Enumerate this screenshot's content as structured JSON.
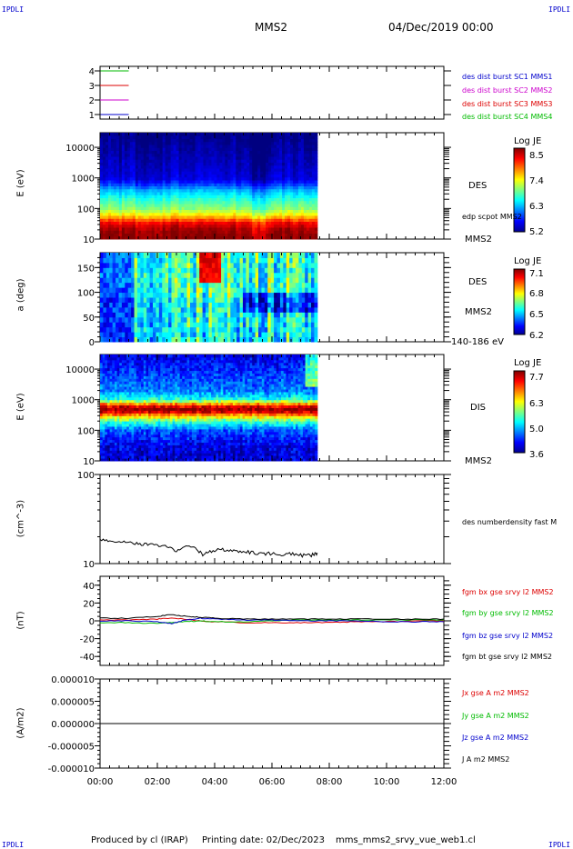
{
  "header": {
    "logo_left": "IPDLI",
    "logo_right": "IPDLI",
    "satellite": "MMS2",
    "date": "04/Dec/2019 00:00"
  },
  "footer": {
    "produced": "Produced by cl (IRAP)",
    "printing": "Printing date: 02/Dec/2023",
    "filename": "mms_mms2_srvy_vue_web1.cl",
    "logo_left": "IPDLI",
    "logo_right": "IPDLI"
  },
  "colors": {
    "red": "#dd0000",
    "green": "#00bb00",
    "blue": "#0000cc",
    "magenta": "#cc00cc",
    "black": "#000000"
  },
  "panels": {
    "p1": {
      "legend": [
        {
          "text": "des dist burst SC1 MMS1",
          "color": "#0000cc"
        },
        {
          "text": "des dist burst SC2 MMS2",
          "color": "#cc00cc"
        },
        {
          "text": "des dist burst SC3 MMS3",
          "color": "#dd0000"
        },
        {
          "text": "des dist burst SC4 MMS4",
          "color": "#00bb00"
        }
      ]
    },
    "p2": {
      "ylabel": "E (eV)",
      "label": "DES",
      "note": "edp scpot MMS2",
      "sat": "MMS2",
      "cbar_title": "Log JE",
      "cbar_ticks": [
        "8.5",
        "7.4",
        "6.3",
        "5.2"
      ]
    },
    "p3": {
      "ylabel": "a (deg)",
      "label": "DES",
      "sat": "MMS2",
      "range": "140-186 eV",
      "cbar_title": "Log JE",
      "cbar_ticks": [
        "7.1",
        "6.8",
        "6.5",
        "6.2"
      ]
    },
    "p4": {
      "ylabel": "E (eV)",
      "label": "DIS",
      "sat": "MMS2",
      "cbar_title": "Log JE",
      "cbar_ticks": [
        "7.7",
        "6.3",
        "5.0",
        "3.6"
      ]
    },
    "p5": {
      "ylabel": "(cm^-3)",
      "legend": "des numberdensity fast M"
    },
    "p6": {
      "ylabel": "(nT)",
      "legend": [
        {
          "text": "fgm bx gse srvy l2 MMS2",
          "color": "#dd0000"
        },
        {
          "text": "fgm by gse srvy l2 MMS2",
          "color": "#00bb00"
        },
        {
          "text": "fgm bz gse srvy l2 MMS2",
          "color": "#0000cc"
        },
        {
          "text": "fgm bt gse srvy l2 MMS2",
          "color": "#000000"
        }
      ]
    },
    "p7": {
      "ylabel": "(A/m2)",
      "legend": [
        {
          "text": "Jx gse A m2 MMS2",
          "color": "#dd0000"
        },
        {
          "text": "Jy gse A m2 MMS2",
          "color": "#00bb00"
        },
        {
          "text": "Jz gse A m2 MMS2",
          "color": "#0000cc"
        },
        {
          "text": "J A m2 MMS2",
          "color": "#000000"
        }
      ]
    }
  },
  "chart_data": [
    {
      "type": "line",
      "panel": "availability",
      "yticks": [
        "1",
        "2",
        "3",
        "4"
      ],
      "series": [
        {
          "name": "des dist burst SC4 MMS4",
          "level": 4,
          "color": "#00bb00",
          "x": [
            "00:00",
            "01:00"
          ]
        },
        {
          "name": "des dist burst SC3 MMS3",
          "level": 3,
          "color": "#dd0000",
          "x": [
            "00:00",
            "01:00"
          ]
        },
        {
          "name": "des dist burst SC2 MMS2",
          "level": 2,
          "color": "#cc00cc",
          "x": [
            "00:00",
            "01:00"
          ]
        },
        {
          "name": "des dist burst SC1 MMS1",
          "level": 1,
          "color": "#0000cc",
          "x": [
            "00:00",
            "01:00"
          ]
        }
      ]
    },
    {
      "type": "heatmap",
      "panel": "DES energy spectrogram",
      "ylabel": "E (eV)",
      "yscale": "log",
      "ylim": [
        10,
        30000
      ],
      "yticks": [
        "10",
        "100",
        "1000",
        "10000"
      ],
      "data_end": "07:35",
      "colorbar": {
        "title": "Log JE",
        "range": [
          5.2,
          8.5
        ]
      },
      "profile_energy_eV": [
        10,
        20,
        35,
        50,
        70,
        100,
        200,
        400,
        700,
        1000,
        3000,
        10000,
        30000
      ],
      "profile_logJE": [
        8.5,
        8.4,
        8.1,
        7.6,
        7.2,
        6.9,
        6.6,
        6.2,
        5.7,
        5.5,
        5.4,
        5.3,
        5.2
      ]
    },
    {
      "type": "heatmap",
      "panel": "DES pitch angle",
      "ylabel": "a (deg)",
      "ylim": [
        0,
        180
      ],
      "yticks": [
        "0",
        "50",
        "100",
        "150"
      ],
      "data_end": "07:35",
      "energy_range": "140-186 eV",
      "colorbar": {
        "title": "Log JE",
        "range": [
          6.2,
          7.1
        ]
      }
    },
    {
      "type": "heatmap",
      "panel": "DIS energy spectrogram",
      "ylabel": "E (eV)",
      "yscale": "log",
      "ylim": [
        10,
        30000
      ],
      "yticks": [
        "10",
        "100",
        "1000",
        "10000"
      ],
      "data_end": "07:35",
      "colorbar": {
        "title": "Log JE",
        "range": [
          3.6,
          7.7
        ]
      },
      "profile_energy_eV": [
        10,
        30,
        100,
        200,
        300,
        400,
        500,
        600,
        800,
        1000,
        2000,
        5000,
        30000
      ],
      "profile_logJE": [
        3.9,
        4.0,
        4.4,
        5.4,
        6.4,
        7.3,
        7.6,
        7.3,
        6.4,
        5.3,
        4.6,
        4.4,
        4.0
      ]
    },
    {
      "type": "line",
      "panel": "density",
      "ylabel": "(cm^-3)",
      "yscale": "log",
      "ylim": [
        10,
        100
      ],
      "yticks": [
        "10",
        "100"
      ],
      "series": [
        {
          "name": "des numberdensity fast M",
          "x": [
            "00:00",
            "00:20",
            "00:40",
            "01:00",
            "01:20",
            "01:40",
            "02:00",
            "02:20",
            "02:40",
            "03:00",
            "03:20",
            "03:35",
            "03:50",
            "04:10",
            "04:30",
            "04:50",
            "05:10",
            "05:30",
            "05:50",
            "06:10",
            "06:30",
            "06:50",
            "07:10",
            "07:25",
            "07:35"
          ],
          "y": [
            18.5,
            18,
            17.5,
            17.8,
            16.5,
            16.5,
            16,
            15.5,
            14,
            15.5,
            15,
            12.5,
            13.5,
            14.5,
            14,
            13.5,
            13.5,
            13,
            13,
            12.8,
            12.8,
            12.6,
            12.3,
            12.5,
            13.2
          ]
        }
      ]
    },
    {
      "type": "line",
      "panel": "magnetic field",
      "ylabel": "(nT)",
      "ylim": [
        -50,
        50
      ],
      "yticks": [
        "-40",
        "-20",
        "0",
        "20",
        "40"
      ],
      "x": [
        "00:00",
        "01:00",
        "02:00",
        "02:30",
        "03:00",
        "03:30",
        "04:00",
        "05:00",
        "06:00",
        "07:00",
        "08:00",
        "09:00",
        "10:00",
        "11:00",
        "12:00"
      ],
      "series": [
        {
          "name": "fgm bx gse srvy l2 MMS2",
          "color": "#dd0000",
          "y": [
            1,
            1,
            2,
            3,
            2,
            0,
            -1,
            -2,
            -2,
            -2,
            -2,
            -1,
            -1,
            0,
            0
          ]
        },
        {
          "name": "fgm by gse srvy l2 MMS2",
          "color": "#00bb00",
          "y": [
            -2,
            -2,
            -3,
            -2,
            -1,
            0,
            -1,
            -1,
            0,
            1,
            1,
            1,
            1,
            1,
            1
          ]
        },
        {
          "name": "fgm bz gse srvy l2 MMS2",
          "color": "#0000cc",
          "y": [
            0,
            0,
            -1,
            -3,
            1,
            3,
            2,
            1,
            1,
            0,
            0,
            0,
            -1,
            -1,
            -1
          ]
        },
        {
          "name": "fgm bt gse srvy l2 MMS2",
          "color": "#000000",
          "y": [
            3,
            3,
            5,
            7,
            5,
            4,
            3,
            2,
            2,
            2,
            2,
            2,
            2,
            2,
            2
          ]
        }
      ]
    },
    {
      "type": "line",
      "panel": "current density",
      "ylabel": "(A/m2)",
      "ylim": [
        -1e-05,
        1e-05
      ],
      "yticks": [
        "-0.000010",
        "-0.000005",
        "0.000000",
        "0.000005",
        "0.000010"
      ],
      "x": [
        "00:00",
        "12:00"
      ],
      "series": [
        {
          "name": "J A m2 MMS2",
          "color": "#000000",
          "y": [
            0,
            0
          ]
        }
      ]
    }
  ],
  "xaxis": {
    "ticks": [
      "00:00",
      "02:00",
      "04:00",
      "06:00",
      "08:00",
      "10:00",
      "12:00"
    ],
    "range_hours": [
      0,
      12
    ]
  }
}
